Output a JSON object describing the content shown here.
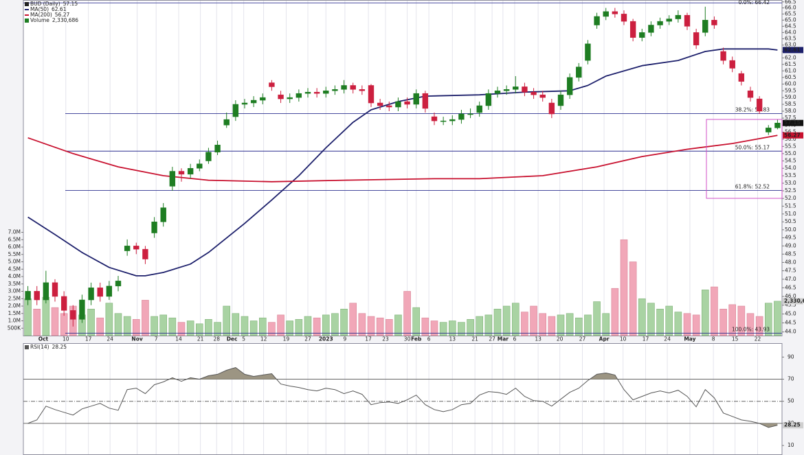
{
  "chart_data": {
    "type": "candlestick",
    "title": "BUD (Daily)",
    "log": true,
    "grid": true,
    "up_color": "#1e7d22",
    "down_color": "#cc1f3f",
    "ylim": [
      43.8,
      66.6
    ],
    "yticks": [
      {
        "value": 44,
        "label": "44.0"
      },
      44.5,
      {
        "value": 45,
        "label": "45.0"
      },
      45.5,
      {
        "value": 46,
        "label": "46.0"
      },
      46.5,
      {
        "value": 47,
        "label": "47.0"
      },
      47.5,
      {
        "value": 48,
        "label": "48.0"
      },
      48.5,
      {
        "value": 49,
        "label": "49.0"
      },
      49.5,
      {
        "value": 50,
        "label": "50.0"
      },
      50.5,
      {
        "value": 51,
        "label": "51.0"
      },
      51.5,
      {
        "value": 52,
        "label": "52.0"
      },
      52.5,
      {
        "value": 53,
        "label": "53.0"
      },
      53.5,
      {
        "value": 54,
        "label": "54.0"
      },
      54.5,
      {
        "value": 55,
        "label": "55.0"
      },
      55.5,
      {
        "value": 56,
        "label": "56.0"
      },
      56.5,
      {
        "value": 57,
        "label": "57.0"
      },
      57.5,
      {
        "value": 58,
        "label": "58.0"
      },
      58.5,
      {
        "value": 59,
        "label": "59.0"
      },
      59.5,
      {
        "value": 60,
        "label": "60.0"
      },
      60.5,
      {
        "value": 61,
        "label": "61.0"
      },
      61.5,
      {
        "value": 62,
        "label": "62.0"
      },
      62.5,
      {
        "value": 63,
        "label": "63.0"
      },
      63.5,
      {
        "value": 64,
        "label": "64.0"
      },
      64.5,
      {
        "value": 65,
        "label": "65.0"
      },
      65.5,
      {
        "value": 66,
        "label": "66.0"
      },
      66.5
    ],
    "xlim": [
      -0.5,
      83.5
    ],
    "xticks": [
      {
        "value": 1.7,
        "label": "Oct"
      },
      {
        "value": 4.2,
        "label": "10"
      },
      {
        "value": 6.7,
        "label": "17"
      },
      {
        "value": 9.1,
        "label": "24"
      },
      {
        "value": 12.1,
        "label": "Nov"
      },
      {
        "value": 14.2,
        "label": "7"
      },
      {
        "value": 16.7,
        "label": "14"
      },
      {
        "value": 19.1,
        "label": "21"
      },
      {
        "value": 20.9,
        "label": "28"
      },
      {
        "value": 22.6,
        "label": "Dec"
      },
      {
        "value": 23.9,
        "label": "5"
      },
      {
        "value": 26.1,
        "label": "12"
      },
      {
        "value": 28.6,
        "label": "19"
      },
      {
        "value": 31.0,
        "label": "27"
      },
      {
        "value": 33.0,
        "label": "2023"
      },
      {
        "value": 35.1,
        "label": "9"
      },
      {
        "value": 37.7,
        "label": "17"
      },
      {
        "value": 39.6,
        "label": "23"
      },
      {
        "value": 42.0,
        "label": "30"
      },
      {
        "value": 43.0,
        "label": "Feb"
      },
      {
        "value": 44.4,
        "label": "6"
      },
      {
        "value": 47.0,
        "label": "13"
      },
      {
        "value": 49.5,
        "label": "21"
      },
      {
        "value": 51.4,
        "label": "27"
      },
      {
        "value": 52.6,
        "label": "Mar"
      },
      {
        "value": 53.9,
        "label": "6"
      },
      {
        "value": 56.5,
        "label": "13"
      },
      {
        "value": 58.9,
        "label": "20"
      },
      {
        "value": 61.4,
        "label": "27"
      },
      {
        "value": 63.8,
        "label": "Apr"
      },
      {
        "value": 65.9,
        "label": "10"
      },
      {
        "value": 68.4,
        "label": "17"
      },
      {
        "value": 70.8,
        "label": "24"
      },
      {
        "value": 73.3,
        "label": "May"
      },
      {
        "value": 75.9,
        "label": "8"
      },
      {
        "value": 78.3,
        "label": "15"
      },
      {
        "value": 80.8,
        "label": "22"
      }
    ],
    "open": [
      45.8,
      46.3,
      45.8,
      46.8,
      46.0,
      45.2,
      44.7,
      45.8,
      46.5,
      46.0,
      46.6,
      48.7,
      49.0,
      48.8,
      49.8,
      50.5,
      52.8,
      53.8,
      53.6,
      54.0,
      54.5,
      55.1,
      57.0,
      57.6,
      58.5,
      58.6,
      58.8,
      60.1,
      59.2,
      58.9,
      59.0,
      59.3,
      59.4,
      59.3,
      59.5,
      59.6,
      59.9,
      59.6,
      59.9,
      58.6,
      58.4,
      58.3,
      58.7,
      58.5,
      59.3,
      57.6,
      57.3,
      57.3,
      57.4,
      57.8,
      57.9,
      58.4,
      59.3,
      59.5,
      59.6,
      59.8,
      59.4,
      59.2,
      58.6,
      58.4,
      59.2,
      60.5,
      61.8,
      64.6,
      65.3,
      65.7,
      65.5,
      64.9,
      63.6,
      64.0,
      64.6,
      64.9,
      65.1,
      65.4,
      64.0,
      64.0,
      65.0,
      62.5,
      61.8,
      60.8,
      59.5,
      58.9,
      56.5,
      56.8
    ],
    "high": [
      46.6,
      46.6,
      47.5,
      47.0,
      46.3,
      45.5,
      46.1,
      46.8,
      46.8,
      46.9,
      47.2,
      49.4,
      49.2,
      49.0,
      50.8,
      51.7,
      54.1,
      54.0,
      54.3,
      54.6,
      55.4,
      55.9,
      57.9,
      58.8,
      58.9,
      59.1,
      59.3,
      60.3,
      59.5,
      59.3,
      59.6,
      59.7,
      59.7,
      59.8,
      59.9,
      60.3,
      60.1,
      59.9,
      60.0,
      58.9,
      58.7,
      59.0,
      59.0,
      59.6,
      59.5,
      57.9,
      57.6,
      57.7,
      58.1,
      58.2,
      58.7,
      59.6,
      59.8,
      59.9,
      60.6,
      60.1,
      59.7,
      59.5,
      58.9,
      59.5,
      60.8,
      61.6,
      63.4,
      65.6,
      66.0,
      66.0,
      65.8,
      65.1,
      64.3,
      64.9,
      65.2,
      65.4,
      65.8,
      65.6,
      64.3,
      66.1,
      65.3,
      62.8,
      62.1,
      61.0,
      59.8,
      59.1,
      57.0,
      57.4
    ],
    "low": [
      45.5,
      45.5,
      45.6,
      45.7,
      44.9,
      44.3,
      44.5,
      45.5,
      45.7,
      45.8,
      46.3,
      48.4,
      48.5,
      47.9,
      49.5,
      50.2,
      52.5,
      53.1,
      53.3,
      53.8,
      54.3,
      54.9,
      56.8,
      57.3,
      58.2,
      58.3,
      58.5,
      59.5,
      58.6,
      58.6,
      58.7,
      59.0,
      59.0,
      59.0,
      59.2,
      59.3,
      59.3,
      59.2,
      58.3,
      58.1,
      58.0,
      58.0,
      58.2,
      58.2,
      57.9,
      57.0,
      57.0,
      57.0,
      57.1,
      57.5,
      57.6,
      58.1,
      59.0,
      59.2,
      59.3,
      59.1,
      58.9,
      58.7,
      57.5,
      58.1,
      58.9,
      60.2,
      61.5,
      64.3,
      65.0,
      65.2,
      64.6,
      63.3,
      63.3,
      63.7,
      64.3,
      64.6,
      64.8,
      64.2,
      62.7,
      63.7,
      64.3,
      61.5,
      60.9,
      59.9,
      58.7,
      57.8,
      56.3,
      56.7
    ],
    "close": [
      46.3,
      45.8,
      46.8,
      46.0,
      45.2,
      44.7,
      45.8,
      46.5,
      46.0,
      46.6,
      46.9,
      49.0,
      48.8,
      48.2,
      50.5,
      51.4,
      53.8,
      53.6,
      54.0,
      54.3,
      55.1,
      55.6,
      57.4,
      58.5,
      58.6,
      58.8,
      59.0,
      59.8,
      58.9,
      59.0,
      59.3,
      59.4,
      59.3,
      59.5,
      59.6,
      59.9,
      59.6,
      59.5,
      58.6,
      58.4,
      58.3,
      58.7,
      58.5,
      59.3,
      58.2,
      57.3,
      57.3,
      57.4,
      57.8,
      57.8,
      58.4,
      59.3,
      59.5,
      59.6,
      59.8,
      59.4,
      59.2,
      59.0,
      57.8,
      59.2,
      60.5,
      61.3,
      63.1,
      65.3,
      65.7,
      65.5,
      64.9,
      63.6,
      64.0,
      64.6,
      64.9,
      65.1,
      65.4,
      64.5,
      63.0,
      65.0,
      64.6,
      61.8,
      61.2,
      60.2,
      59.0,
      58.0,
      56.8,
      57.15
    ],
    "overlays": [
      {
        "name": "MA(50)",
        "color": "#1c1f6b",
        "x": [
          0,
          3,
          6,
          9,
          12,
          13,
          15,
          18,
          20,
          24,
          27,
          30,
          33,
          36,
          38,
          41,
          44,
          50,
          55,
          60,
          62,
          64,
          68,
          72,
          75,
          77,
          79,
          82,
          83
        ],
        "values": [
          50.8,
          49.7,
          48.6,
          47.7,
          47.2,
          47.2,
          47.4,
          47.9,
          48.6,
          50.4,
          51.9,
          53.5,
          55.4,
          57.2,
          58.1,
          58.7,
          59.1,
          59.2,
          59.4,
          59.5,
          59.9,
          60.6,
          61.4,
          61.8,
          62.5,
          62.7,
          62.7,
          62.7,
          62.61
        ]
      },
      {
        "name": "MA(200)",
        "color": "#c8102e",
        "x": [
          0,
          5,
          10,
          15,
          20,
          27,
          35,
          45,
          50,
          57,
          63,
          68,
          73,
          78,
          83
        ],
        "values": [
          56.1,
          55.0,
          54.1,
          53.5,
          53.2,
          53.1,
          53.2,
          53.3,
          53.3,
          53.5,
          54.1,
          54.8,
          55.3,
          55.7,
          56.27
        ]
      }
    ],
    "fibonacci": {
      "color": "#2b2f8f",
      "levels": [
        {
          "label": "0.0%: 66.42",
          "value": 66.42
        },
        {
          "label": "38.2%: 57.83",
          "value": 57.83
        },
        {
          "label": "50.0%: 55.17",
          "value": 55.17
        },
        {
          "label": "61.8%: 52.52",
          "value": 52.52
        },
        {
          "label": "100.0%: 43.93",
          "value": 43.93
        }
      ]
    },
    "volume": {
      "name": "Volume",
      "last_label": "2,330,686",
      "up_color": "#a9d3a3",
      "down_color": "#f1a7b8",
      "ylim": [
        0,
        7600000
      ],
      "yticks": [
        {
          "value": 500000,
          "label": "500K"
        },
        {
          "value": 1000000,
          "label": "1.0M"
        },
        {
          "value": 1500000,
          "label": "1.5M"
        },
        {
          "value": 2000000,
          "label": "2.0M"
        },
        {
          "value": 2500000,
          "label": "2.5M"
        },
        {
          "value": 3000000,
          "label": "3.0M"
        },
        {
          "value": 3500000,
          "label": "3.5M"
        },
        {
          "value": 4000000,
          "label": "4.0M"
        },
        {
          "value": 4500000,
          "label": "4.5M"
        },
        {
          "value": 5000000,
          "label": "5.0M"
        },
        {
          "value": 5500000,
          "label": "5.5M"
        },
        {
          "value": 6000000,
          "label": "6.0M"
        },
        {
          "value": 6500000,
          "label": "6.5M"
        },
        {
          "value": 7000000,
          "label": "7.0M"
        }
      ],
      "values": [
        2500000,
        1800000,
        2600000,
        1900000,
        1500000,
        2000000,
        1400000,
        1800000,
        1200000,
        2200000,
        1500000,
        1300000,
        1100000,
        2400000,
        1300000,
        1400000,
        1200000,
        900000,
        1000000,
        800000,
        1100000,
        900000,
        2000000,
        1500000,
        1300000,
        1000000,
        1200000,
        900000,
        1400000,
        1000000,
        1100000,
        1300000,
        1200000,
        1400000,
        1500000,
        1800000,
        2200000,
        1500000,
        1300000,
        1200000,
        1100000,
        1400000,
        3000000,
        1900000,
        1200000,
        1000000,
        900000,
        1000000,
        900000,
        1100000,
        1300000,
        1400000,
        1800000,
        2000000,
        2200000,
        1600000,
        2000000,
        1500000,
        1300000,
        1400000,
        1500000,
        1200000,
        1400000,
        2300000,
        1500000,
        3200000,
        6500000,
        5000000,
        2500000,
        2200000,
        1800000,
        2000000,
        1600000,
        1500000,
        1400000,
        3100000,
        3300000,
        1800000,
        2100000,
        2000000,
        1500000,
        1300000,
        2200000,
        2330686
      ]
    },
    "rsi": {
      "name": "RSI(14)",
      "color": "#555555",
      "fill": "#9c9583",
      "ylim": [
        2,
        102
      ],
      "yticks": [
        90,
        70,
        50,
        30,
        10
      ],
      "levels": [
        70,
        50,
        30
      ],
      "values": [
        30.0,
        33.1,
        45.6,
        42.5,
        40.0,
        37.5,
        43.1,
        45.6,
        48.1,
        43.8,
        41.9,
        60.6,
        61.9,
        56.9,
        65.0,
        67.5,
        71.3,
        68.1,
        71.3,
        70.0,
        73.1,
        74.4,
        78.1,
        80.6,
        74.4,
        72.5,
        73.8,
        75.0,
        65.6,
        63.8,
        62.5,
        60.6,
        59.4,
        61.9,
        60.6,
        56.9,
        59.4,
        56.3,
        46.9,
        48.8,
        49.4,
        48.1,
        51.3,
        55.6,
        46.9,
        42.5,
        40.6,
        42.5,
        46.9,
        48.1,
        55.6,
        58.8,
        58.1,
        56.3,
        61.9,
        54.4,
        50.6,
        50.0,
        45.6,
        51.9,
        58.1,
        61.9,
        68.8,
        74.4,
        75.6,
        73.8,
        60.6,
        51.3,
        54.4,
        57.5,
        59.4,
        57.5,
        60.0,
        54.4,
        45.0,
        60.6,
        53.1,
        39.4,
        36.3,
        33.1,
        31.9,
        30.0,
        26.3,
        28.25
      ]
    }
  }
}
